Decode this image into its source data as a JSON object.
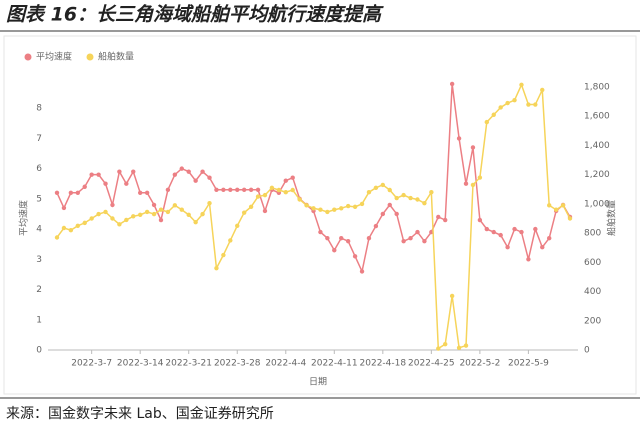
{
  "header": {
    "title": "图表 16：长三角海域船舶平均航行速度提高"
  },
  "chart_data": {
    "type": "line",
    "xlabel": "日期",
    "ylabel": "平均速度",
    "y2label": "船舶数量",
    "x": [
      "2022-3-2",
      "2022-3-3",
      "2022-3-4",
      "2022-3-5",
      "2022-3-6",
      "2022-3-7",
      "2022-3-8",
      "2022-3-9",
      "2022-3-10",
      "2022-3-11",
      "2022-3-12",
      "2022-3-13",
      "2022-3-14",
      "2022-3-15",
      "2022-3-16",
      "2022-3-17",
      "2022-3-18",
      "2022-3-19",
      "2022-3-20",
      "2022-3-21",
      "2022-3-22",
      "2022-3-23",
      "2022-3-24",
      "2022-3-25",
      "2022-3-26",
      "2022-3-27",
      "2022-3-28",
      "2022-3-29",
      "2022-3-30",
      "2022-3-31",
      "2022-4-1",
      "2022-4-2",
      "2022-4-3",
      "2022-4-4",
      "2022-4-5",
      "2022-4-6",
      "2022-4-7",
      "2022-4-8",
      "2022-4-9",
      "2022-4-10",
      "2022-4-11",
      "2022-4-12",
      "2022-4-13",
      "2022-4-14",
      "2022-4-15",
      "2022-4-16",
      "2022-4-17",
      "2022-4-18",
      "2022-4-19",
      "2022-4-20",
      "2022-4-21",
      "2022-4-22",
      "2022-4-23",
      "2022-4-24",
      "2022-4-25",
      "2022-4-26",
      "2022-4-27",
      "2022-4-28",
      "2022-4-29",
      "2022-4-30",
      "2022-5-1",
      "2022-5-2",
      "2022-5-3",
      "2022-5-4",
      "2022-5-5",
      "2022-5-6",
      "2022-5-7",
      "2022-5-8",
      "2022-5-9",
      "2022-5-10",
      "2022-5-11",
      "2022-5-12",
      "2022-5-13",
      "2022-5-14",
      "2022-5-15"
    ],
    "xticks": [
      "2022-3-7",
      "2022-3-14",
      "2022-3-21",
      "2022-3-28",
      "2022-4-4",
      "2022-4-11",
      "2022-4-18",
      "2022-4-25",
      "2022-5-2",
      "2022-5-9"
    ],
    "ylim": [
      0,
      8.7
    ],
    "yticks": [
      0,
      1,
      2,
      3,
      4,
      5,
      6,
      7,
      8
    ],
    "y2lim": [
      0,
      1800
    ],
    "y2ticks": [
      0,
      200,
      400,
      600,
      800,
      {
        "value": 1000,
        "label": "1,000"
      },
      {
        "value": 1200,
        "label": "1,200"
      },
      {
        "value": 1400,
        "label": "1,400"
      },
      {
        "value": 1600,
        "label": "1,600"
      },
      {
        "value": 1800,
        "label": "1,800"
      }
    ],
    "grid": false,
    "legend": "top-left",
    "series": [
      {
        "name": "平均速度",
        "color": "#ec7f84",
        "axis": "y",
        "values": [
          5.2,
          4.7,
          5.2,
          5.2,
          5.4,
          5.8,
          5.8,
          5.5,
          4.8,
          5.9,
          5.5,
          5.9,
          5.2,
          5.2,
          4.8,
          4.3,
          5.3,
          5.8,
          6.0,
          5.9,
          5.6,
          5.9,
          5.7,
          5.3,
          5.3,
          5.3,
          5.3,
          5.3,
          5.3,
          5.3,
          4.6,
          5.3,
          5.2,
          5.6,
          5.7,
          5.0,
          4.8,
          4.6,
          3.9,
          3.7,
          3.3,
          3.7,
          3.6,
          3.1,
          2.6,
          3.7,
          4.1,
          4.5,
          4.8,
          4.5,
          3.6,
          3.7,
          3.9,
          3.6,
          3.9,
          4.4,
          4.3,
          8.8,
          7.0,
          5.5,
          6.7,
          4.3,
          4.0,
          3.9,
          3.8,
          3.4,
          4.0,
          3.9,
          3.0,
          4.0,
          3.4,
          3.7,
          4.6,
          4.8,
          4.4
        ]
      },
      {
        "name": "船舶数量",
        "color": "#f6d45a",
        "axis": "y2",
        "values": [
          770,
          835,
          820,
          850,
          870,
          900,
          930,
          945,
          900,
          860,
          890,
          915,
          925,
          945,
          930,
          960,
          945,
          990,
          960,
          925,
          875,
          930,
          1005,
          560,
          650,
          750,
          850,
          940,
          980,
          1050,
          1060,
          1110,
          1095,
          1080,
          1095,
          1030,
          990,
          970,
          960,
          945,
          960,
          970,
          985,
          980,
          1000,
          1080,
          1110,
          1130,
          1095,
          1040,
          1060,
          1040,
          1030,
          1005,
          1080,
          10,
          40,
          370,
          15,
          30,
          1130,
          1180,
          1560,
          1610,
          1660,
          1690,
          1710,
          1815,
          1680,
          1680,
          1780,
          990,
          960,
          990,
          900
        ]
      }
    ]
  },
  "footer": {
    "source": "来源：国金数字未来 Lab、国金证券研究所"
  }
}
